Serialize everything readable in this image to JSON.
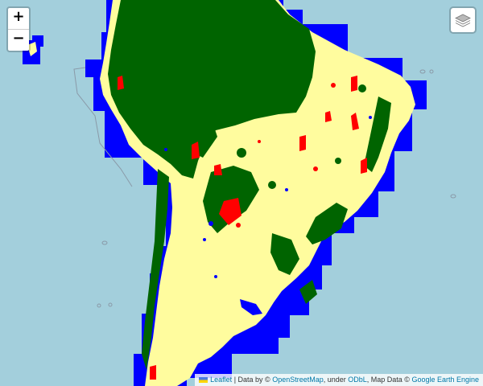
{
  "map": {
    "colors": {
      "ocean": "#a3cfdc",
      "coastal_buffer": "#0000ff",
      "land": "#fffc9e",
      "forest": "#006400",
      "red_class": "#ff0000",
      "water": "#0000ff"
    }
  },
  "controls": {
    "zoom_in": "+",
    "zoom_out": "−",
    "layers_icon": "layers-icon"
  },
  "attribution": {
    "leaflet": "Leaflet",
    "sep1": " | Data by © ",
    "osm": "OpenStreetMap",
    "sep2": ", under ",
    "odbl": "ODbL",
    "sep3": ", Map Data © ",
    "gee": "Google Earth Engine"
  }
}
